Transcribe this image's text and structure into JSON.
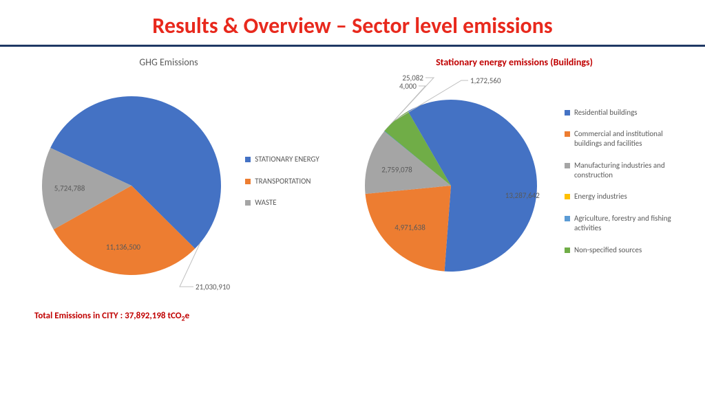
{
  "page": {
    "title": "Results & Overview – Sector level emissions",
    "title_color": "#e8291d",
    "divider_color": "#1f3864",
    "background_color": "#ffffff"
  },
  "chart_left": {
    "type": "pie",
    "title": "GHG Emissions",
    "title_color": "#595959",
    "title_fontsize": 14,
    "radius": 130,
    "slices": [
      {
        "label": "STATIONARY ENERGY",
        "value": 21030910,
        "value_text": "21,030,910",
        "color": "#4472c4"
      },
      {
        "label": "TRANSPORTATION",
        "value": 11136500,
        "value_text": "11,136,500",
        "color": "#ed7d31"
      },
      {
        "label": "WASTE",
        "value": 5724788,
        "value_text": "5,724,788",
        "color": "#a5a5a5"
      }
    ],
    "legend_position": "right",
    "legend_fontsize": 11,
    "data_label_fontsize": 11,
    "data_label_color": "#595959",
    "total_line": "Total Emissions in CITY : 37,892,198 tCO",
    "total_line_suffix": "e",
    "total_line_sub": "2",
    "total_line_color": "#c00000",
    "start_angle_deg": -65
  },
  "chart_right": {
    "type": "pie",
    "title": "Stationary energy emissions (Buildings)",
    "title_color": "#c00000",
    "title_fontsize": 14,
    "radius": 125,
    "slices": [
      {
        "label": "Residential buildings",
        "value": 13287642,
        "value_text": "13,287,642",
        "color": "#4472c4"
      },
      {
        "label": "Commercial and institutional buildings and facilities",
        "value": 4971638,
        "value_text": "4,971,638",
        "color": "#ed7d31"
      },
      {
        "label": "Manufacturing industries and construction",
        "value": 2759078,
        "value_text": "2,759,078",
        "color": "#a5a5a5"
      },
      {
        "label": "Energy industries",
        "value": 4000,
        "value_text": "4,000",
        "color": "#ffc000"
      },
      {
        "label": "Agriculture, forestry and fishing activities",
        "value": 25082,
        "value_text": "25,082",
        "color": "#5b9bd5"
      },
      {
        "label": "Non-specified sources",
        "value": 1272560,
        "value_text": "1,272,560",
        "color": "#70ad47"
      }
    ],
    "legend_position": "right",
    "legend_fontsize": 11,
    "data_label_fontsize": 11,
    "data_label_color": "#595959",
    "leader_line_color": "#bfbfbf",
    "start_angle_deg": -30
  }
}
